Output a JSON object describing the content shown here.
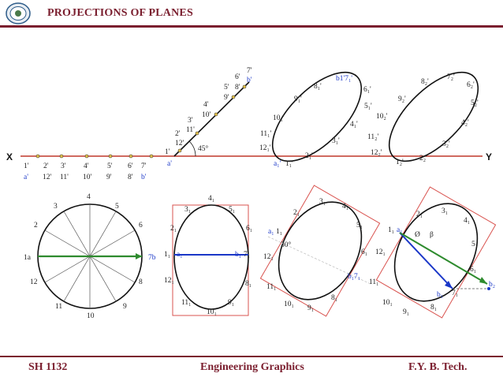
{
  "header": {
    "title": "PROJECTIONS OF PLANES"
  },
  "footer": {
    "course_code": "SH 1132",
    "subject": "Engineering Graphics",
    "program": "F.Y.  B. Tech."
  },
  "reference_line": {
    "left_label": "X",
    "right_label": "Y"
  },
  "elevation_labels": {
    "angle": "45°",
    "points": [
      "1'",
      "2'",
      "12'",
      "3'",
      "11'",
      "4'",
      "10'",
      "5'",
      "9'",
      "6'",
      "8'",
      "7'",
      "a'",
      "b'"
    ],
    "under_xy_top": [
      "1'",
      "2'",
      "3'",
      "4'",
      "5'",
      "6'",
      "7'"
    ],
    "under_xy_bottom": [
      "a'",
      "12'",
      "11'",
      "10'",
      "9'",
      "8'",
      "b'"
    ]
  },
  "plan_circle_labels": [
    "1a",
    "2",
    "3",
    "4",
    "5",
    "6",
    "7b",
    "8",
    "9",
    "10",
    "11",
    "12"
  ],
  "plan_ellipse_labels": [
    "1₁",
    "a₁",
    "2₁",
    "3₁",
    "4₁",
    "5₁",
    "6₁",
    "b₁",
    "7₁",
    "8₁",
    "9₁",
    "10₁",
    "11₁",
    "12₁"
  ],
  "rotated_plan_labels": [
    "a₁",
    "1₁",
    "2₁",
    "3₁",
    "4₁",
    "5₁",
    "6₁",
    "b₁7₁",
    "8₁",
    "9₁",
    "10₁",
    "11₁",
    "12₁",
    "30°"
  ],
  "final_plan_labels": [
    "1₁",
    "a₁",
    "2₁",
    "3₁",
    "4₁",
    "5₁",
    "6₁",
    "b₁",
    "7₁",
    "b₂",
    "8₁",
    "9₁",
    "10₁",
    "11₁",
    "12₁",
    "Ø",
    "β"
  ],
  "elev2_labels": [
    "a₁'",
    "1₁'",
    "2₁'",
    "3₁'",
    "4₁'",
    "b1'7₁'",
    "6₁'",
    "8₁'",
    "9₁'",
    "10₁'",
    "11₁'",
    "12₁'"
  ],
  "elev3_labels": [
    "1₂'",
    "2₂'",
    "3₂'",
    "4₂'",
    "5₂'",
    "6₂'",
    "7₂'",
    "8₂'",
    "9₂'",
    "10₂'",
    "11₂'",
    "12₂'",
    "5₁'"
  ],
  "colors": {
    "title": "#7a1e2e",
    "reference_line": "#c0392b",
    "true_length_line": "#2e8b2e",
    "projection_line": "#1a37c8",
    "frame": "#d9534f"
  }
}
